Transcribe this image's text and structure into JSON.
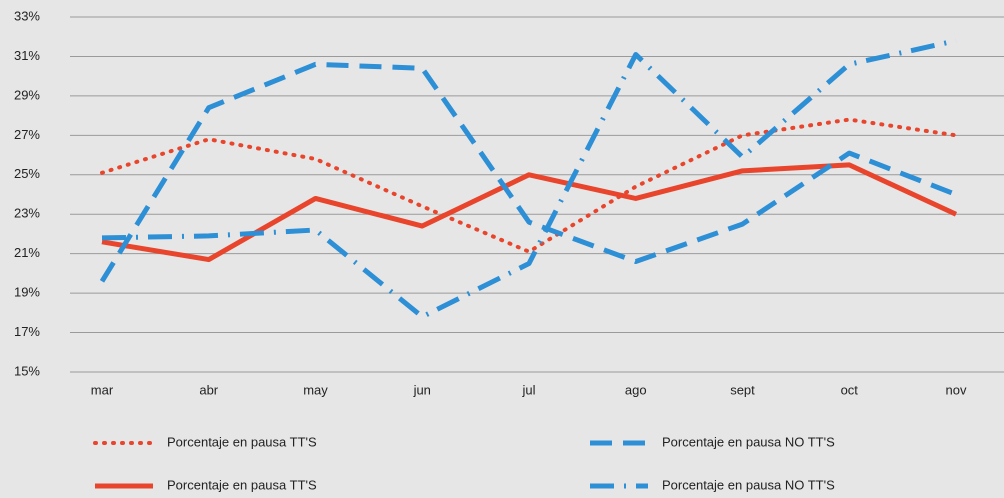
{
  "chart_data": {
    "type": "line",
    "categories": [
      "mar",
      "abr",
      "may",
      "jun",
      "jul",
      "ago",
      "sept",
      "oct",
      "nov"
    ],
    "series": [
      {
        "name": "Porcentaje en pausa TT'S",
        "color": "#e8452c",
        "dash": "dotted",
        "values": [
          25.1,
          26.8,
          25.8,
          23.4,
          21.1,
          24.4,
          27.0,
          27.8,
          27.0
        ]
      },
      {
        "name": "Porcentaje en pausa TT'S",
        "color": "#e8452c",
        "dash": "solid",
        "values": [
          21.6,
          20.7,
          23.8,
          22.4,
          25.0,
          23.8,
          25.2,
          25.5,
          23.0
        ]
      },
      {
        "name": "Porcentaje en pausa NO TT'S",
        "color": "#2d8fd5",
        "dash": "dashed",
        "values": [
          19.6,
          28.4,
          30.6,
          30.4,
          22.6,
          20.6,
          22.5,
          26.1,
          24.0
        ]
      },
      {
        "name": "Porcentaje en pausa NO TT'S",
        "color": "#2d8fd5",
        "dash": "dashdot",
        "values": [
          21.8,
          21.9,
          22.2,
          17.8,
          20.5,
          31.1,
          25.9,
          30.6,
          31.8
        ]
      }
    ],
    "ylim": [
      15,
      33
    ],
    "yticks": [
      {
        "value": 15,
        "label": "15%"
      },
      {
        "value": 17,
        "label": "17%"
      },
      {
        "value": 19,
        "label": "19%"
      },
      {
        "value": 21,
        "label": "21%"
      },
      {
        "value": 23,
        "label": "23%"
      },
      {
        "value": 25,
        "label": "25%"
      },
      {
        "value": 27,
        "label": "27%"
      },
      {
        "value": 29,
        "label": "29%"
      },
      {
        "value": 31,
        "label": "31%"
      },
      {
        "value": 33,
        "label": "33%"
      }
    ],
    "grid": true,
    "legend": "bottom"
  }
}
